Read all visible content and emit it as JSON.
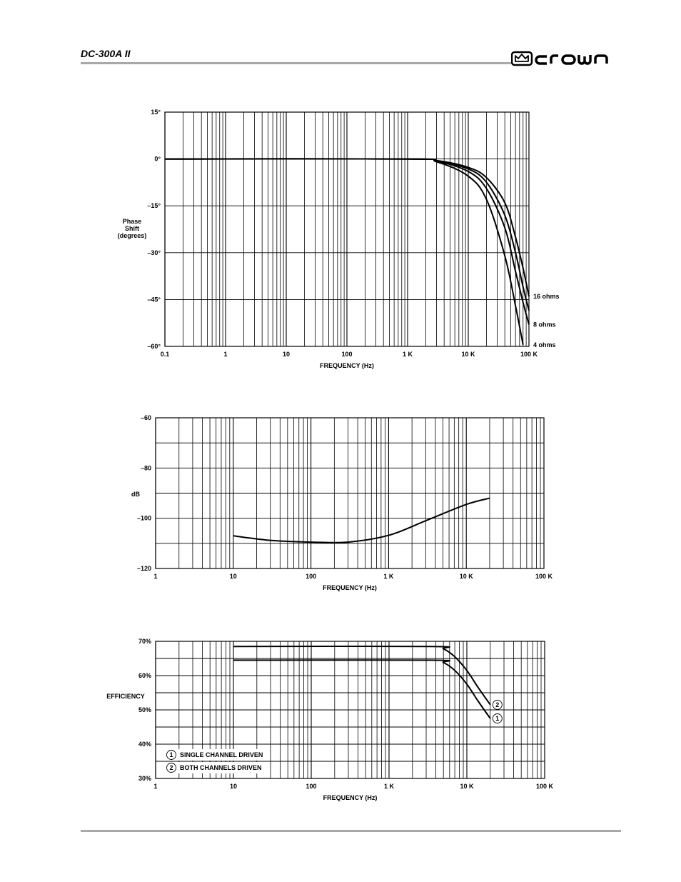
{
  "header": {
    "model": "DC-300A II",
    "brand": "crown"
  },
  "chart_data": [
    {
      "type": "line",
      "xscale": "log",
      "xlim": [
        0.1,
        100000
      ],
      "ylim": [
        -60,
        15
      ],
      "xticks": [
        0.1,
        1,
        10,
        100,
        1000,
        10000,
        100000
      ],
      "xticklabels": [
        "0.1",
        "1",
        "10",
        "100",
        "1 K",
        "10 K",
        "100 K"
      ],
      "yticks": [
        15,
        0,
        -15,
        -30,
        -45,
        -60
      ],
      "yticklabels": [
        "15°",
        "0°",
        "–15°",
        "–30°",
        "–45°",
        "–60°"
      ],
      "xlabel": "FREQUENCY (Hz)",
      "ylabel": [
        "Phase",
        "Shift",
        "(degrees)"
      ],
      "grid": true,
      "series": [
        {
          "name": "16 ohms",
          "x": [
            0.1,
            1000,
            3000,
            10000,
            20000,
            40000,
            60000,
            80000,
            100000
          ],
          "y": [
            0,
            0,
            -0.5,
            -2.7,
            -6,
            -14,
            -25,
            -35,
            -44
          ]
        },
        {
          "name": "",
          "x": [
            0.1,
            1000,
            3000,
            10000,
            20000,
            40000,
            60000,
            80000,
            100000
          ],
          "y": [
            0,
            0,
            -0.6,
            -3.2,
            -7.5,
            -18,
            -30,
            -41,
            -48.5
          ]
        },
        {
          "name": "8 ohms",
          "x": [
            0.1,
            1000,
            3000,
            10000,
            20000,
            40000,
            60000,
            80000,
            100000
          ],
          "y": [
            0,
            0,
            -0.7,
            -4,
            -9.5,
            -22,
            -36,
            -46,
            -53
          ]
        },
        {
          "name": "4 ohms",
          "x": [
            0.1,
            1000,
            3000,
            10000,
            20000,
            40000,
            60000,
            80000
          ],
          "y": [
            0,
            0,
            -0.9,
            -5.5,
            -13,
            -31,
            -47,
            -59.5
          ]
        }
      ],
      "series_labels": [
        "16 ohms",
        "8 ohms",
        "4 ohms"
      ]
    },
    {
      "type": "line",
      "xscale": "log",
      "xlim": [
        1,
        100000
      ],
      "ylim": [
        -120,
        -60
      ],
      "xticks": [
        1,
        10,
        100,
        1000,
        10000,
        100000
      ],
      "xticklabels": [
        "1",
        "10",
        "100",
        "1 K",
        "10 K",
        "100 K"
      ],
      "yticks": [
        -60,
        -80,
        -100,
        -120
      ],
      "yticklabels": [
        "–60",
        "–80",
        "–100",
        "–120"
      ],
      "xlabel": "FREQUENCY (Hz)",
      "ylabel": "dB",
      "grid": true,
      "series": [
        {
          "x": [
            10,
            30,
            100,
            300,
            1000,
            3000,
            10000,
            20000
          ],
          "y": [
            -107,
            -108.8,
            -109.5,
            -109.5,
            -106.8,
            -101,
            -94.5,
            -92
          ]
        }
      ]
    },
    {
      "type": "line",
      "xscale": "log",
      "xlim": [
        1,
        100000
      ],
      "ylim": [
        30,
        70
      ],
      "xticks": [
        1,
        10,
        100,
        1000,
        10000,
        100000
      ],
      "xticklabels": [
        "1",
        "10",
        "100",
        "1 K",
        "10 K",
        "100 K"
      ],
      "yticks": [
        70,
        60,
        50,
        40,
        30
      ],
      "yticklabels": [
        "70%",
        "60%",
        "50%",
        "40%",
        "30%"
      ],
      "xlabel": "FREQUENCY (Hz)",
      "ylabel": "EFFICIENCY",
      "grid": true,
      "series": [
        {
          "name": "BOTH CHANNELS DRIVEN",
          "marker": "2",
          "x": [
            10,
            3500,
            5000,
            7000,
            10000,
            14000,
            20000
          ],
          "y": [
            68.5,
            68.5,
            67.8,
            65.5,
            61.5,
            56.5,
            51.5
          ]
        },
        {
          "name": "SINGLE CHANNEL DRIVEN",
          "marker": "1",
          "x": [
            10,
            3500,
            5000,
            7000,
            10000,
            14000,
            20000
          ],
          "y": [
            64.5,
            64.5,
            63.8,
            61.5,
            57.5,
            52.5,
            47.5
          ]
        }
      ],
      "legend": [
        {
          "marker": "1",
          "label": "SINGLE CHANNEL DRIVEN"
        },
        {
          "marker": "2",
          "label": "BOTH CHANNELS DRIVEN"
        }
      ]
    }
  ]
}
